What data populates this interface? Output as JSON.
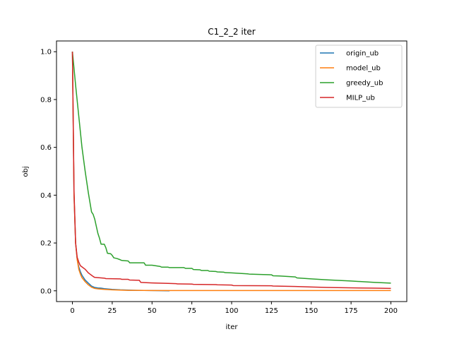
{
  "chart_data": {
    "type": "line",
    "title": "C1_2_2 iter",
    "xlabel": "iter",
    "ylabel": "obj",
    "xlim": [
      -10,
      210
    ],
    "ylim": [
      -0.045,
      1.045
    ],
    "xticks": [
      0,
      25,
      50,
      75,
      100,
      125,
      150,
      175,
      200
    ],
    "yticks": [
      0.0,
      0.2,
      0.4,
      0.6,
      0.8,
      1.0
    ],
    "xtick_labels": [
      "0",
      "25",
      "50",
      "75",
      "100",
      "125",
      "150",
      "175",
      "200"
    ],
    "ytick_labels": [
      "0.0",
      "0.2",
      "0.4",
      "0.6",
      "0.8",
      "1.0"
    ],
    "grid": false,
    "legend_position": "top-right",
    "series": [
      {
        "name": "origin_ub",
        "color": "#1f77b4",
        "x": [
          0,
          1,
          2,
          3,
          4,
          5,
          6,
          8,
          10,
          12,
          14,
          16,
          18,
          20,
          25,
          30,
          35,
          40,
          50,
          61
        ],
        "y": [
          1.0,
          0.4,
          0.2,
          0.13,
          0.1,
          0.08,
          0.065,
          0.045,
          0.032,
          0.02,
          0.014,
          0.012,
          0.011,
          0.009,
          0.006,
          0.004,
          0.003,
          0.002,
          0.001,
          0.0
        ]
      },
      {
        "name": "model_ub",
        "color": "#ff7f0e",
        "x": [
          0,
          1,
          2,
          3,
          4,
          5,
          6,
          8,
          10,
          12,
          14,
          16,
          18,
          20,
          25,
          30,
          35,
          40,
          50,
          75,
          100,
          125,
          150,
          175,
          200
        ],
        "y": [
          1.0,
          0.4,
          0.2,
          0.13,
          0.09,
          0.07,
          0.055,
          0.038,
          0.025,
          0.015,
          0.01,
          0.008,
          0.007,
          0.006,
          0.004,
          0.003,
          0.002,
          0.002,
          0.001,
          0.001,
          0.001,
          0.001,
          0.001,
          0.001,
          0.001
        ]
      },
      {
        "name": "greedy_ub",
        "color": "#2ca02c",
        "x": [
          0,
          2,
          4,
          6,
          8,
          10,
          12,
          13,
          14,
          15,
          16,
          17,
          18,
          20,
          21,
          22,
          24,
          25,
          26,
          28,
          30,
          31,
          35,
          36,
          40,
          45,
          46,
          50,
          55,
          56,
          60,
          61,
          70,
          71,
          75,
          76,
          80,
          81,
          85,
          86,
          90,
          91,
          95,
          96,
          100,
          110,
          111,
          120,
          125,
          126,
          130,
          140,
          141,
          150,
          160,
          175,
          190,
          200
        ],
        "y": [
          1.0,
          0.86,
          0.73,
          0.6,
          0.5,
          0.41,
          0.33,
          0.32,
          0.3,
          0.27,
          0.24,
          0.22,
          0.195,
          0.195,
          0.18,
          0.157,
          0.155,
          0.148,
          0.138,
          0.135,
          0.13,
          0.127,
          0.125,
          0.117,
          0.117,
          0.117,
          0.107,
          0.107,
          0.102,
          0.099,
          0.099,
          0.097,
          0.097,
          0.094,
          0.094,
          0.089,
          0.088,
          0.085,
          0.085,
          0.082,
          0.081,
          0.079,
          0.078,
          0.076,
          0.075,
          0.071,
          0.07,
          0.068,
          0.067,
          0.063,
          0.062,
          0.058,
          0.054,
          0.05,
          0.046,
          0.041,
          0.035,
          0.032
        ]
      },
      {
        "name": "MILP_ub",
        "color": "#d62728",
        "x": [
          0,
          1,
          2,
          3,
          4,
          5,
          6,
          8,
          10,
          11,
          12,
          13,
          14,
          20,
          21,
          30,
          31,
          35,
          36,
          42,
          43,
          50,
          60,
          65,
          66,
          75,
          76,
          90,
          91,
          100,
          101,
          125,
          126,
          140,
          150,
          160,
          170,
          180,
          190,
          200
        ],
        "y": [
          1.0,
          0.42,
          0.2,
          0.14,
          0.12,
          0.105,
          0.1,
          0.09,
          0.075,
          0.07,
          0.065,
          0.06,
          0.056,
          0.053,
          0.051,
          0.05,
          0.048,
          0.048,
          0.045,
          0.044,
          0.035,
          0.033,
          0.031,
          0.03,
          0.029,
          0.028,
          0.027,
          0.026,
          0.025,
          0.024,
          0.022,
          0.021,
          0.02,
          0.018,
          0.016,
          0.014,
          0.013,
          0.012,
          0.011,
          0.01
        ]
      }
    ]
  }
}
